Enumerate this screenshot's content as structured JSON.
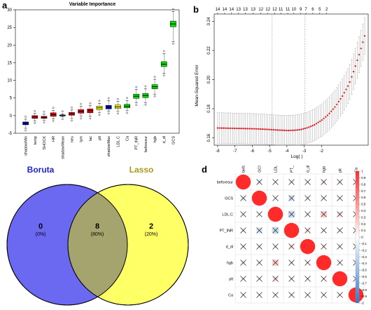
{
  "panels": {
    "a": {
      "letter": "a"
    },
    "b": {
      "letter": "b"
    },
    "c": {
      "letter": ""
    },
    "d": {
      "letter": "d"
    }
  },
  "chart_data": [
    {
      "id": "boruta-importance",
      "type": "box",
      "title": "Variable Importance",
      "xlabel": "",
      "ylabel": "",
      "ylim": [
        -5,
        30
      ],
      "yticks": [
        -5,
        0,
        5,
        10,
        15,
        20,
        25,
        30
      ],
      "grid": false,
      "colors": {
        "rejected": "#e8000b",
        "tentative": "#ffff00",
        "confirmed": "#00e600",
        "shadow": "#0000cc"
      },
      "categories": [
        "shadowMin",
        "temp",
        "SHOCK",
        "HR",
        "shadowMean",
        "neu",
        "lym",
        "lac",
        "plt",
        "shadowMax",
        "LDL.C",
        "Ca",
        "PT_INR",
        "beforesur",
        "hgb",
        "d_di",
        "GCS"
      ],
      "status": [
        "shadow",
        "rejected",
        "rejected",
        "rejected",
        "shadow",
        "rejected",
        "rejected",
        "rejected",
        "tentative",
        "shadow",
        "tentative",
        "confirmed",
        "confirmed",
        "confirmed",
        "confirmed",
        "confirmed",
        "confirmed"
      ],
      "boxes": [
        {
          "min": -3.6,
          "q1": -2.6,
          "median": -2.2,
          "q3": -1.8,
          "max": -1.0
        },
        {
          "min": -1.5,
          "q1": -0.8,
          "median": -0.4,
          "q3": 0.0,
          "max": 0.6
        },
        {
          "min": -1.3,
          "q1": -0.8,
          "median": -0.5,
          "q3": -0.2,
          "max": 0.4
        },
        {
          "min": -0.9,
          "q1": -0.2,
          "median": 0.3,
          "q3": 0.8,
          "max": 1.5
        },
        {
          "min": -0.4,
          "q1": -0.1,
          "median": 0.0,
          "q3": 0.2,
          "max": 0.5
        },
        {
          "min": -0.8,
          "q1": 0.1,
          "median": 0.5,
          "q3": 0.9,
          "max": 1.6
        },
        {
          "min": -0.2,
          "q1": 0.7,
          "median": 1.2,
          "q3": 1.7,
          "max": 2.6
        },
        {
          "min": -0.2,
          "q1": 0.8,
          "median": 1.4,
          "q3": 1.9,
          "max": 2.8
        },
        {
          "min": 0.8,
          "q1": 1.7,
          "median": 2.2,
          "q3": 2.7,
          "max": 3.5
        },
        {
          "min": 1.2,
          "q1": 1.9,
          "median": 2.4,
          "q3": 2.9,
          "max": 4.2
        },
        {
          "min": 1.2,
          "q1": 2.0,
          "median": 2.5,
          "q3": 3.0,
          "max": 4.0
        },
        {
          "min": 1.4,
          "q1": 2.2,
          "median": 2.7,
          "q3": 3.2,
          "max": 4.3
        },
        {
          "min": 3.6,
          "q1": 4.9,
          "median": 5.5,
          "q3": 6.1,
          "max": 7.4
        },
        {
          "min": 3.7,
          "q1": 5.1,
          "median": 5.7,
          "q3": 6.3,
          "max": 7.6
        },
        {
          "min": 6.1,
          "q1": 7.6,
          "median": 8.2,
          "q3": 8.8,
          "max": 10.3
        },
        {
          "min": 12.0,
          "q1": 13.9,
          "median": 14.6,
          "q3": 15.3,
          "max": 17.6
        },
        {
          "min": 21.0,
          "q1": 25.2,
          "median": 26.0,
          "q3": 26.8,
          "max": 29.5
        }
      ]
    },
    {
      "id": "lasso-cv",
      "type": "line",
      "title": "",
      "xlabel": "Log(  )",
      "ylabel": "Mean-Squared Error",
      "xlim": [
        -8.2,
        0.7
      ],
      "ylim": [
        0.155,
        0.245
      ],
      "xticks": [
        -8,
        -7,
        -6,
        -5,
        -4,
        -3,
        -2
      ],
      "yticks": [
        0.16,
        0.18,
        0.2,
        0.22,
        0.24
      ],
      "vlines": [
        -4.85,
        -2.95
      ],
      "top_axis_x": [
        -8.0,
        -7.6,
        -7.2,
        -6.8,
        -6.4,
        -5.95,
        -5.5,
        -5.1,
        -4.7,
        -4.35,
        -3.95,
        -3.6,
        -3.2,
        -2.9,
        -2.5,
        -2.1,
        -1.7
      ],
      "top_axis_labels": [
        "14",
        "14",
        "14",
        "13",
        "13",
        "13",
        "12",
        "12",
        "12",
        "11",
        "11",
        "10",
        "9",
        "7",
        "6",
        "5",
        "2"
      ],
      "color": "#e8000b",
      "x": [
        -8.0,
        -7.6,
        -7.2,
        -6.8,
        -6.4,
        -6.0,
        -5.6,
        -5.2,
        -4.8,
        -4.4,
        -4.0,
        -3.6,
        -3.2,
        -2.8,
        -2.4,
        -2.0,
        -1.6,
        -1.2,
        -0.8,
        -0.4,
        -0.1,
        0.2,
        0.5
      ],
      "y": [
        0.1668,
        0.1667,
        0.1666,
        0.1665,
        0.1664,
        0.1663,
        0.1661,
        0.1659,
        0.1656,
        0.1653,
        0.1651,
        0.1652,
        0.1657,
        0.167,
        0.169,
        0.172,
        0.176,
        0.1815,
        0.1885,
        0.197,
        0.207,
        0.218,
        0.23
      ],
      "err": [
        0.0105,
        0.0105,
        0.0105,
        0.0104,
        0.0104,
        0.0104,
        0.0103,
        0.0103,
        0.0103,
        0.0103,
        0.0103,
        0.0104,
        0.0105,
        0.0107,
        0.0109,
        0.0111,
        0.0113,
        0.0115,
        0.0118,
        0.012,
        0.0122,
        0.0124,
        0.0126
      ]
    },
    {
      "id": "venn",
      "type": "venn",
      "sets": [
        {
          "name": "Boruta",
          "color": "#6b69f2",
          "title_color": "#2222cc"
        },
        {
          "name": "Lasso",
          "color": "#ffff66",
          "title_color": "#a89a1c"
        }
      ],
      "regions": [
        {
          "count": "0",
          "percent": "(0%)"
        },
        {
          "count": "8",
          "percent": "(80%)"
        },
        {
          "count": "2",
          "percent": "(20%)"
        }
      ],
      "intersection_color": "#a5a46f"
    },
    {
      "id": "correlation",
      "type": "heatmap",
      "labels": [
        "beforesur",
        "GCS",
        "LDL.C",
        "PT_INR",
        "d_di",
        "hgb",
        "plt",
        "Ca"
      ],
      "matrix": [
        [
          1.0,
          -0.12,
          0.05,
          0.08,
          0.06,
          0.1,
          -0.08,
          0.05
        ],
        [
          -0.12,
          1.0,
          0.04,
          -0.18,
          0.07,
          0.06,
          0.05,
          0.04
        ],
        [
          0.05,
          0.04,
          1.0,
          -0.25,
          0.06,
          0.22,
          0.14,
          0.05
        ],
        [
          0.08,
          -0.18,
          -0.25,
          1.0,
          0.11,
          0.08,
          0.06,
          0.05
        ],
        [
          0.06,
          0.07,
          0.06,
          0.11,
          1.0,
          0.07,
          0.05,
          0.04
        ],
        [
          0.1,
          0.06,
          0.22,
          0.08,
          0.07,
          1.0,
          0.06,
          0.05
        ],
        [
          -0.08,
          0.05,
          0.14,
          0.06,
          0.05,
          0.06,
          1.0,
          0.06
        ],
        [
          0.05,
          0.04,
          0.05,
          0.05,
          0.04,
          0.05,
          0.06,
          1.0
        ]
      ],
      "colorbar_ticks": [
        "1",
        "0.9",
        "0.8",
        "0.7",
        "0.6",
        "0.5",
        "0.4",
        "0.3",
        "0.2",
        "0.1",
        "0",
        "-0.1",
        "-0.2",
        "-0.3",
        "-0.4",
        "-0.5",
        "-0.6",
        "-0.7",
        "-0.8",
        "-0.9",
        "-1"
      ],
      "pos_color": "#ff3333",
      "neg_color": "#3a7fd1",
      "cross_color": "#222222"
    }
  ]
}
